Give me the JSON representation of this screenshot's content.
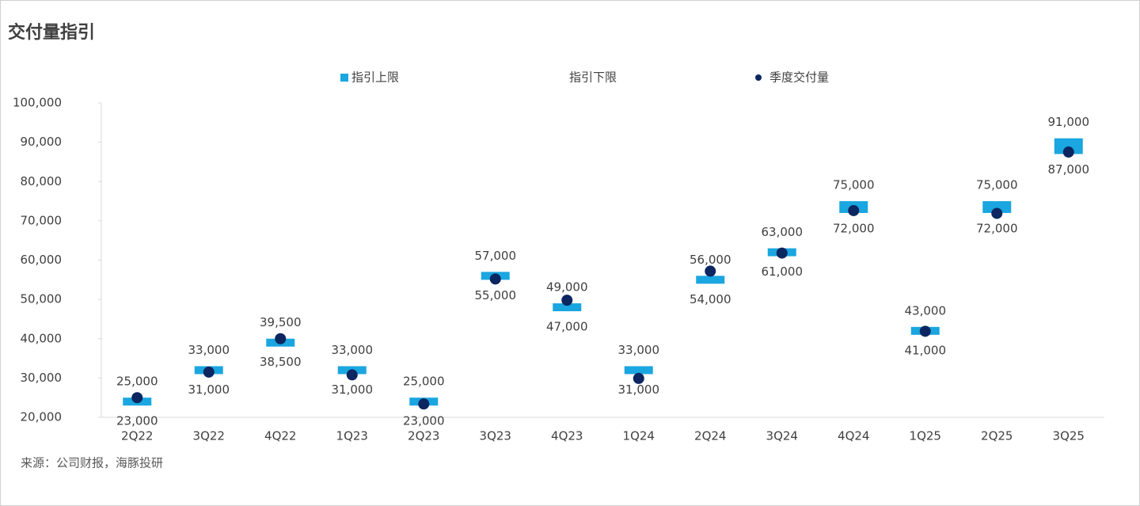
{
  "chart_data": {
    "type": "range-dot",
    "title": "交付量指引",
    "source": "来源：公司财报，海豚投研",
    "categories": [
      "2Q22",
      "3Q22",
      "4Q22",
      "1Q23",
      "2Q23",
      "3Q23",
      "4Q23",
      "1Q24",
      "2Q24",
      "3Q24",
      "4Q24",
      "1Q25",
      "2Q25",
      "3Q25"
    ],
    "series": [
      {
        "name": "指引上限",
        "color": "#1aa6e0",
        "values": [
          25000,
          33000,
          39500,
          33000,
          25000,
          57000,
          49000,
          33000,
          56000,
          63000,
          75000,
          43000,
          75000,
          91000
        ],
        "value_labels": [
          "25,000",
          "33,000",
          "39,500",
          "33,000",
          "25,000",
          "57,000",
          "49,000",
          "33,000",
          "56,000",
          "63,000",
          "75,000",
          "43,000",
          "75,000",
          "91,000"
        ]
      },
      {
        "name": "指引下限",
        "color": "#1aa6e0",
        "values": [
          23000,
          31000,
          38500,
          31000,
          23000,
          55000,
          47000,
          31000,
          54000,
          61000,
          72000,
          41000,
          72000,
          87000
        ],
        "value_labels": [
          "23,000",
          "31,000",
          "38,500",
          "31,000",
          "23,000",
          "55,000",
          "47,000",
          "31,000",
          "54,000",
          "61,000",
          "72,000",
          "41,000",
          "72,000",
          "87,000"
        ]
      },
      {
        "name": "季度交付量",
        "color": "#0b2660",
        "values": [
          25000,
          31500,
          40000,
          30800,
          23400,
          55200,
          49800,
          29900,
          57200,
          61800,
          72600,
          41900,
          71900,
          87500
        ]
      }
    ],
    "ylim": [
      20000,
      100000
    ],
    "yticks": [
      {
        "value": 20000,
        "label": "20,000"
      },
      {
        "value": 30000,
        "label": "30,000"
      },
      {
        "value": 40000,
        "label": "40,000"
      },
      {
        "value": 50000,
        "label": "50,000"
      },
      {
        "value": 60000,
        "label": "60,000"
      },
      {
        "value": 70000,
        "label": "70,000"
      },
      {
        "value": 80000,
        "label": "80,000"
      },
      {
        "value": 90000,
        "label": "90,000"
      },
      {
        "value": 100000,
        "label": "100,000"
      }
    ]
  }
}
